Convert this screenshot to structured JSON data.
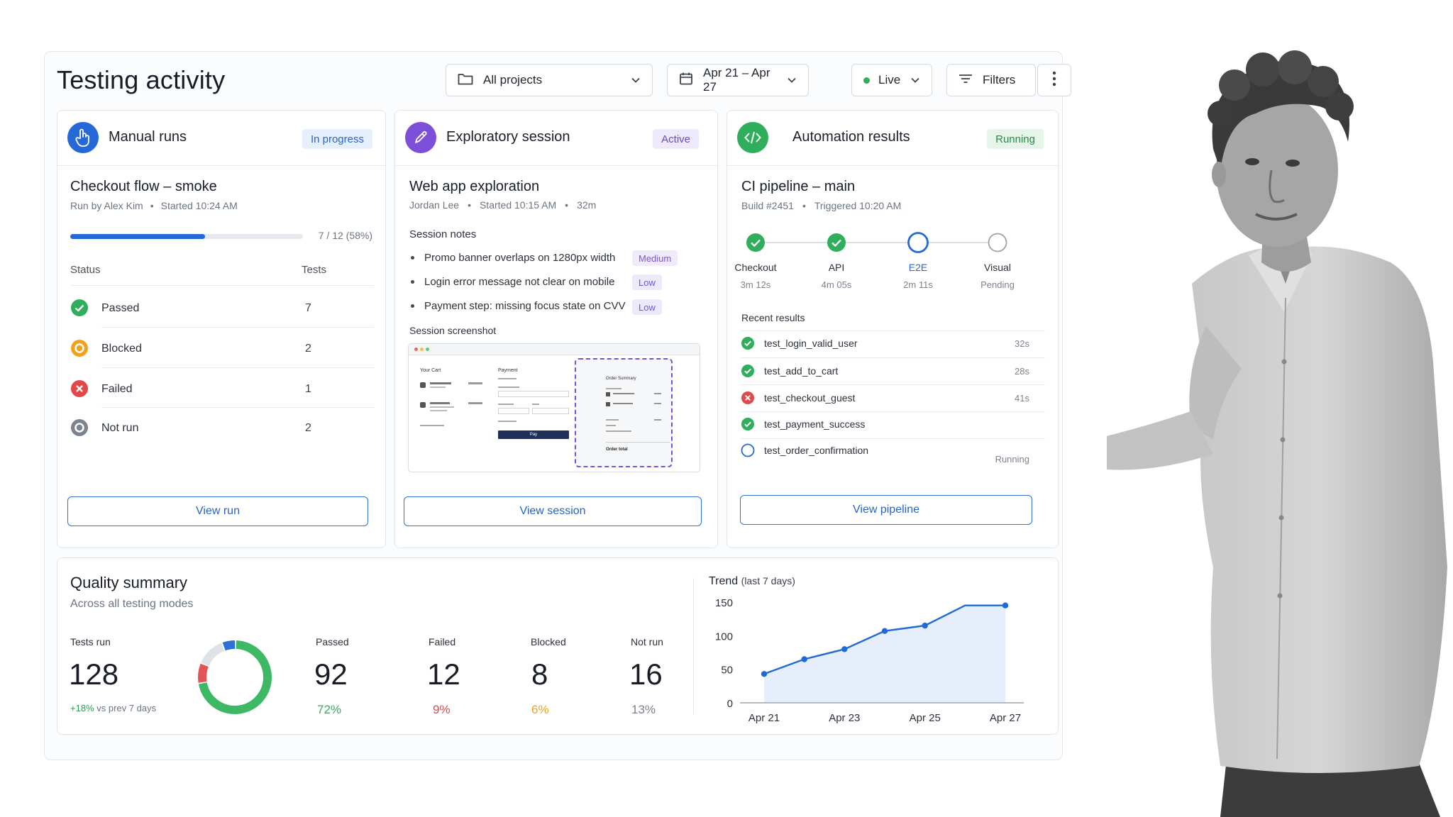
{
  "page": {
    "title": "Testing activity"
  },
  "toolbar": {
    "projects": "All projects",
    "date_range": "Apr 21 – Apr 27",
    "mode": "Live",
    "filters": "Filters"
  },
  "manual": {
    "title": "Manual runs",
    "badge": "In progress",
    "run_name": "Checkout flow – smoke",
    "run_by": "Run by Alex Kim",
    "started": "Started 10:24 AM",
    "progress_text": "7 / 12 (58%)",
    "progress_fraction": 0.58,
    "col_status": "Status",
    "col_tests": "Tests",
    "rows": [
      {
        "label": "Passed",
        "count": "7",
        "color": "#2fae5b"
      },
      {
        "label": "Blocked",
        "count": "2",
        "color": "#f1a21c"
      },
      {
        "label": "Failed",
        "count": "1",
        "color": "#e34848"
      },
      {
        "label": "Not run",
        "count": "2",
        "color": "#7b838f"
      }
    ],
    "button": "View run"
  },
  "exploratory": {
    "title": "Exploratory session",
    "badge": "Active",
    "session_name": "Web app exploration",
    "tester": "Jordan Lee",
    "started": "Started 10:15 AM",
    "duration": "32m",
    "notes_heading": "Session notes",
    "notes": [
      {
        "text": "Promo banner overlaps on 1280px width",
        "severity": "Medium"
      },
      {
        "text": "Login error message not clear on mobile",
        "severity": "Low"
      },
      {
        "text": "Payment step: missing focus state on CVV",
        "severity": "Low"
      }
    ],
    "screenshot_heading": "Session screenshot",
    "screenshot": {
      "cart": "Your Cart",
      "payment": "Payment",
      "order_summary": "Order Summary",
      "pay": "Pay",
      "total": "Order total"
    },
    "button": "View session"
  },
  "automation": {
    "title": "Automation results",
    "badge": "Running",
    "pipeline": "CI pipeline – main",
    "build": "Build #2451",
    "triggered": "Triggered 10:20 AM",
    "steps": [
      {
        "name": "Checkout",
        "time": "3m 12s",
        "state": "done"
      },
      {
        "name": "API",
        "time": "4m 05s",
        "state": "done"
      },
      {
        "name": "E2E",
        "time": "2m 11s",
        "state": "active"
      },
      {
        "name": "Visual",
        "time": "Pending",
        "state": "pending"
      }
    ],
    "recent_heading": "Recent results",
    "results": [
      {
        "name": "test_login_valid_user",
        "time": "32s",
        "state": "pass"
      },
      {
        "name": "test_add_to_cart",
        "time": "28s",
        "state": "pass"
      },
      {
        "name": "test_checkout_guest",
        "time": "41s",
        "state": "fail"
      },
      {
        "name": "test_payment_success",
        "time": "",
        "state": "pass"
      },
      {
        "name": "test_order_confirmation",
        "time": "Running",
        "state": "running"
      }
    ],
    "button": "View pipeline"
  },
  "summary": {
    "title": "Quality summary",
    "subtitle": "Across all testing modes",
    "tests_run_label": "Tests run",
    "tests_run": "128",
    "delta": "+18%",
    "delta_suffix": "vs prev 7 days",
    "stats": [
      {
        "label": "Passed",
        "value": "92",
        "pct": "72%",
        "color": "#2fae5b"
      },
      {
        "label": "Failed",
        "value": "12",
        "pct": "9%",
        "color": "#e34848"
      },
      {
        "label": "Blocked",
        "value": "8",
        "pct": "6%",
        "color": "#f1a21c"
      },
      {
        "label": "Not run",
        "value": "16",
        "pct": "13%",
        "color": "#7b838f"
      }
    ],
    "donut": [
      {
        "label": "Passed",
        "value": 72,
        "color": "#3db865"
      },
      {
        "label": "Failed",
        "value": 9,
        "color": "#e55454"
      },
      {
        "label": "Not run",
        "value": 13,
        "color": "#dfe3e8"
      },
      {
        "label": "Blocked",
        "value": 6,
        "color": "#2e6fd6"
      }
    ]
  },
  "chart_data": {
    "type": "area",
    "title": "Trend",
    "subtitle": "(last 7 days)",
    "x": [
      "Apr 21",
      "Apr 22",
      "Apr 23",
      "Apr 24",
      "Apr 25",
      "Apr 26",
      "Apr 27"
    ],
    "x_tick_labels": [
      "Apr 21",
      "Apr 23",
      "Apr 25",
      "Apr 27"
    ],
    "series": [
      {
        "values": [
          43,
          65,
          80,
          107,
          115,
          145,
          145
        ]
      }
    ],
    "ylim": [
      0,
      150
    ],
    "yticks": [
      0,
      50,
      100,
      150
    ],
    "grid": false,
    "colors": {
      "line": "#1f6ad6",
      "fill": "#e7eefb"
    }
  }
}
